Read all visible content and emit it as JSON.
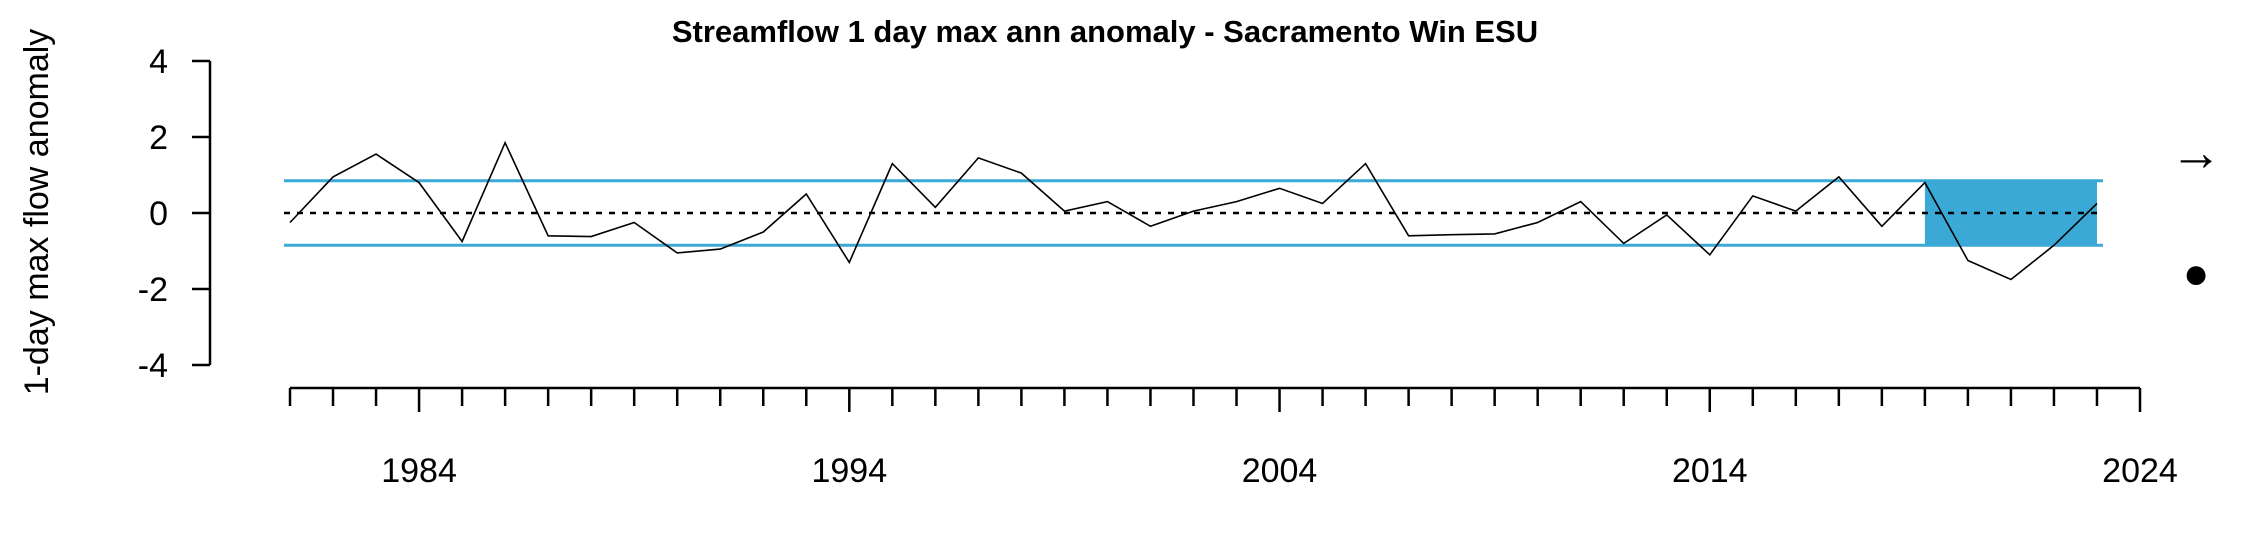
{
  "chart_data": {
    "type": "line",
    "title": "Streamflow 1 day max ann anomaly - Sacramento Win ESU",
    "xlabel": "",
    "ylabel": "1-day max flow anomaly",
    "xlim": [
      1981,
      2024
    ],
    "ylim": [
      -4,
      4
    ],
    "x_ticks": [
      1984,
      1994,
      2004,
      2014,
      2024
    ],
    "y_ticks": [
      4,
      2,
      0,
      -2,
      -4
    ],
    "reference_lines": {
      "mean": 0,
      "upper_sd": 0.85,
      "lower_sd": -0.85
    },
    "highlight_range": {
      "x": [
        2019,
        2023
      ],
      "y": [
        -0.85,
        0.85
      ],
      "color": "#3ba9d6"
    },
    "line_color": "#3ba9d6",
    "trend_symbol": "→",
    "status_symbol": "●",
    "series": [
      {
        "x": [
          1981,
          1982,
          1983,
          1984,
          1985,
          1986,
          1987,
          1988,
          1989,
          1990,
          1991,
          1992,
          1993,
          1994,
          1995,
          1996,
          1997,
          1998,
          1999,
          2000,
          2001,
          2002,
          2003,
          2004,
          2005,
          2006,
          2007,
          2008,
          2009,
          2010,
          2011,
          2012,
          2013,
          2014,
          2015,
          2016,
          2017,
          2018,
          2019,
          2020,
          2021,
          2022,
          2023
        ],
        "values": [
          -0.25,
          0.95,
          1.55,
          0.8,
          -0.75,
          1.85,
          -0.6,
          -0.62,
          -0.25,
          -1.05,
          -0.95,
          -0.5,
          0.5,
          -1.3,
          1.3,
          0.15,
          1.45,
          1.05,
          0.05,
          0.3,
          -0.35,
          0.05,
          0.3,
          0.65,
          0.25,
          1.3,
          -0.6,
          -0.57,
          -0.55,
          -0.25,
          0.3,
          -0.8,
          -0.05,
          -1.1,
          0.45,
          0.05,
          0.95,
          -0.35,
          0.8,
          -1.25,
          -1.75,
          -0.85,
          0.25
        ]
      }
    ]
  }
}
